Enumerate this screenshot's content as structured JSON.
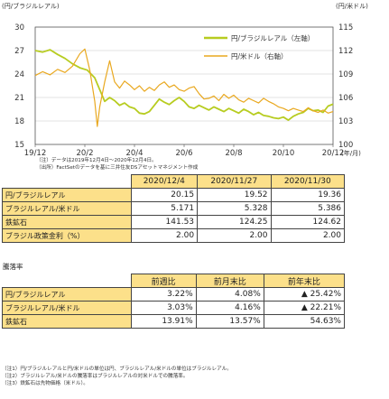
{
  "chart_data": {
    "type": "line",
    "left_axis_unit": "(円/ブラジルレアル)",
    "right_axis_unit": "(円/米ドル)",
    "x_unit": "(年/月)",
    "x_ticks": [
      "19/12",
      "20/2",
      "20/4",
      "20/6",
      "20/8",
      "20/10",
      "20/12"
    ],
    "ylim_left": [
      15,
      30
    ],
    "yticks_left": [
      "15",
      "18",
      "21",
      "24",
      "27",
      "30"
    ],
    "ylim_right": [
      100,
      115
    ],
    "yticks_right": [
      "100",
      "103",
      "106",
      "109",
      "112",
      "115"
    ],
    "x_months_range": [
      0,
      12
    ],
    "legend_position": "top-right",
    "series": [
      {
        "name": "円/ブラジルレアル（左軸）",
        "axis": "left",
        "color": "#b7cc20",
        "values": [
          [
            0,
            27.0
          ],
          [
            0.3,
            26.8
          ],
          [
            0.6,
            27.1
          ],
          [
            0.9,
            26.5
          ],
          [
            1.2,
            26.0
          ],
          [
            1.5,
            25.3
          ],
          [
            1.8,
            24.8
          ],
          [
            2.1,
            24.5
          ],
          [
            2.4,
            23.5
          ],
          [
            2.6,
            22.0
          ],
          [
            2.8,
            20.5
          ],
          [
            3.0,
            21.0
          ],
          [
            3.2,
            20.6
          ],
          [
            3.4,
            20.0
          ],
          [
            3.6,
            20.3
          ],
          [
            3.8,
            19.8
          ],
          [
            4.0,
            19.6
          ],
          [
            4.2,
            19.0
          ],
          [
            4.4,
            18.9
          ],
          [
            4.6,
            19.2
          ],
          [
            4.8,
            20.0
          ],
          [
            5.0,
            20.8
          ],
          [
            5.2,
            20.4
          ],
          [
            5.4,
            20.1
          ],
          [
            5.6,
            20.6
          ],
          [
            5.8,
            21.0
          ],
          [
            6.0,
            20.5
          ],
          [
            6.2,
            19.8
          ],
          [
            6.4,
            19.6
          ],
          [
            6.6,
            20.0
          ],
          [
            6.8,
            19.7
          ],
          [
            7.0,
            19.4
          ],
          [
            7.2,
            19.8
          ],
          [
            7.4,
            19.5
          ],
          [
            7.6,
            19.2
          ],
          [
            7.8,
            19.6
          ],
          [
            8.0,
            19.3
          ],
          [
            8.2,
            19.0
          ],
          [
            8.4,
            19.5
          ],
          [
            8.6,
            19.2
          ],
          [
            8.8,
            18.8
          ],
          [
            9.0,
            19.1
          ],
          [
            9.2,
            18.7
          ],
          [
            9.4,
            18.6
          ],
          [
            9.6,
            18.4
          ],
          [
            9.8,
            18.3
          ],
          [
            10.0,
            18.5
          ],
          [
            10.2,
            18.1
          ],
          [
            10.4,
            18.6
          ],
          [
            10.6,
            18.9
          ],
          [
            10.8,
            19.1
          ],
          [
            11.0,
            19.6
          ],
          [
            11.2,
            19.3
          ],
          [
            11.4,
            19.4
          ],
          [
            11.6,
            19.1
          ],
          [
            11.8,
            19.9
          ],
          [
            12.0,
            20.15
          ]
        ]
      },
      {
        "name": "円/米ドル（右軸）",
        "axis": "right",
        "color": "#e9a81f",
        "values": [
          [
            0,
            108.8
          ],
          [
            0.3,
            109.3
          ],
          [
            0.6,
            108.9
          ],
          [
            0.9,
            109.6
          ],
          [
            1.2,
            109.2
          ],
          [
            1.5,
            110.0
          ],
          [
            1.8,
            111.6
          ],
          [
            2.0,
            112.2
          ],
          [
            2.2,
            109.5
          ],
          [
            2.4,
            105.5
          ],
          [
            2.5,
            102.3
          ],
          [
            2.6,
            104.8
          ],
          [
            2.8,
            108.0
          ],
          [
            3.0,
            110.7
          ],
          [
            3.2,
            108.0
          ],
          [
            3.4,
            107.2
          ],
          [
            3.6,
            108.1
          ],
          [
            3.8,
            107.6
          ],
          [
            4.0,
            107.0
          ],
          [
            4.2,
            107.5
          ],
          [
            4.4,
            106.8
          ],
          [
            4.6,
            107.3
          ],
          [
            4.8,
            106.9
          ],
          [
            5.0,
            107.6
          ],
          [
            5.2,
            108.0
          ],
          [
            5.4,
            107.3
          ],
          [
            5.6,
            107.6
          ],
          [
            5.8,
            107.0
          ],
          [
            6.0,
            106.8
          ],
          [
            6.2,
            107.2
          ],
          [
            6.4,
            107.4
          ],
          [
            6.6,
            106.5
          ],
          [
            6.8,
            105.8
          ],
          [
            7.0,
            105.9
          ],
          [
            7.2,
            106.2
          ],
          [
            7.4,
            105.6
          ],
          [
            7.6,
            106.4
          ],
          [
            7.8,
            105.9
          ],
          [
            8.0,
            106.3
          ],
          [
            8.2,
            105.7
          ],
          [
            8.4,
            105.4
          ],
          [
            8.6,
            105.9
          ],
          [
            8.8,
            105.6
          ],
          [
            9.0,
            105.3
          ],
          [
            9.2,
            105.9
          ],
          [
            9.4,
            105.5
          ],
          [
            9.6,
            105.2
          ],
          [
            9.8,
            104.8
          ],
          [
            10.0,
            104.6
          ],
          [
            10.2,
            104.3
          ],
          [
            10.4,
            104.6
          ],
          [
            10.6,
            104.4
          ],
          [
            10.8,
            104.2
          ],
          [
            11.0,
            104.7
          ],
          [
            11.2,
            104.3
          ],
          [
            11.4,
            104.1
          ],
          [
            11.6,
            104.4
          ],
          [
            11.8,
            104.0
          ],
          [
            12.0,
            104.2
          ]
        ]
      }
    ]
  },
  "chart_notes": [
    "（注）データは2019年12月4日～2020年12月4日。",
    "（出所）FactSetのデータを基に三井住友DSアセットマネジメント作成"
  ],
  "rates_table": {
    "headers": [
      "2020/12/4",
      "2020/11/27",
      "2020/11/30"
    ],
    "rows": [
      {
        "label": "円/ブラジルレアル",
        "values": [
          "20.15",
          "19.52",
          "19.36"
        ]
      },
      {
        "label": "ブラジルレアル/米ドル",
        "values": [
          "5.171",
          "5.328",
          "5.386"
        ]
      },
      {
        "label": "鉄鉱石",
        "values": [
          "141.53",
          "124.25",
          "124.62"
        ]
      },
      {
        "label": "ブラジル政策金利（%）",
        "values": [
          "2.00",
          "2.00",
          "2.00"
        ]
      }
    ]
  },
  "change_title": "騰落率",
  "change_table": {
    "headers": [
      "前週比",
      "前月末比",
      "前年末比"
    ],
    "rows": [
      {
        "label": "円/ブラジルレアル",
        "values": [
          "3.22%",
          "4.08%",
          "▲ 25.42%"
        ]
      },
      {
        "label": "ブラジルレアル/米ドル",
        "values": [
          "3.03%",
          "4.16%",
          "▲ 22.21%"
        ]
      },
      {
        "label": "鉄鉱石",
        "values": [
          "13.91%",
          "13.57%",
          "54.63%"
        ]
      }
    ]
  },
  "footnotes": [
    "（注1）円/ブラジルレアルと円/米ドルの単位は円、ブラジルレアル/米ドルの単位はブラジルレアル。",
    "（注2）ブラジルレアル/米ドルの騰落率はブラジルレアルの対米ドルでの騰落率。",
    "（注3）鉄鉱石は先物価格（米ドル）。"
  ],
  "colors": {
    "table_label_bg": "#fce08a",
    "grid": "#c8c8c8"
  }
}
